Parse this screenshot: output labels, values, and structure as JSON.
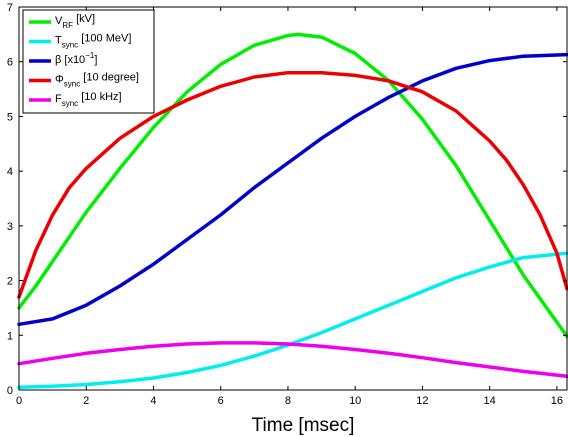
{
  "chart_data": {
    "type": "line",
    "xlabel": "Time [msec]",
    "ylabel": "",
    "xlim": [
      0,
      16.3
    ],
    "ylim": [
      0,
      7
    ],
    "xticks": [
      0,
      2,
      4,
      6,
      8,
      10,
      12,
      14,
      16
    ],
    "yticks": [
      0,
      1,
      2,
      3,
      4,
      5,
      6,
      7
    ],
    "grid": false,
    "legend_position": "top-left",
    "series": [
      {
        "key": "vrf",
        "name": "V_RF [kV]",
        "label_main": "V",
        "label_sub": "RF",
        "label_sup": "",
        "label_rest": " [kV]",
        "color": "#00ee00",
        "x": [
          0,
          0.5,
          1,
          1.5,
          2,
          3,
          4,
          5,
          6,
          7,
          8,
          8.3,
          9,
          10,
          11,
          12,
          13,
          14,
          15,
          16.3
        ],
        "y": [
          1.5,
          1.9,
          2.35,
          2.8,
          3.25,
          4.05,
          4.8,
          5.45,
          5.95,
          6.3,
          6.48,
          6.5,
          6.45,
          6.15,
          5.65,
          4.95,
          4.1,
          3.1,
          2.1,
          0.98
        ]
      },
      {
        "key": "tsync",
        "name": "T_sync [100 MeV]",
        "label_main": "T",
        "label_sub": "sync",
        "label_sup": "",
        "label_rest": " [100 MeV]",
        "color": "#00eeee",
        "x": [
          0,
          1,
          2,
          3,
          4,
          5,
          6,
          7,
          8,
          9,
          10,
          11,
          12,
          13,
          14,
          15,
          16.3
        ],
        "y": [
          0.05,
          0.07,
          0.1,
          0.15,
          0.22,
          0.32,
          0.45,
          0.62,
          0.82,
          1.05,
          1.3,
          1.55,
          1.8,
          2.05,
          2.25,
          2.42,
          2.5
        ]
      },
      {
        "key": "beta",
        "name": "β [x10^-1]",
        "label_main": "β [x10",
        "label_sub": "",
        "label_sup": "−1",
        "label_rest": "]",
        "color": "#0000cc",
        "x": [
          0,
          1,
          2,
          3,
          4,
          5,
          6,
          7,
          8,
          9,
          10,
          11,
          12,
          13,
          14,
          15,
          16.3
        ],
        "y": [
          1.2,
          1.3,
          1.55,
          1.9,
          2.3,
          2.75,
          3.2,
          3.7,
          4.15,
          4.6,
          5.0,
          5.35,
          5.65,
          5.88,
          6.02,
          6.1,
          6.13
        ]
      },
      {
        "key": "phisync",
        "name": "Φ_sync [10 degree]",
        "label_main": "Φ",
        "label_sub": "sync",
        "label_sup": "",
        "label_rest": " [10 degree]",
        "color": "#ee0000",
        "x": [
          0,
          0.5,
          1,
          1.5,
          2,
          3,
          4,
          5,
          6,
          7,
          8,
          9,
          10,
          11,
          12,
          13,
          14,
          14.5,
          15,
          15.5,
          16,
          16.3
        ],
        "y": [
          1.7,
          2.55,
          3.2,
          3.7,
          4.05,
          4.6,
          5.0,
          5.3,
          5.55,
          5.72,
          5.8,
          5.8,
          5.75,
          5.65,
          5.45,
          5.1,
          4.55,
          4.2,
          3.75,
          3.2,
          2.5,
          1.85
        ]
      },
      {
        "key": "fsync",
        "name": "F_sync [10 kHz]",
        "label_main": "F",
        "label_sub": "sync",
        "label_sup": "",
        "label_rest": " [10 kHz]",
        "color": "#ee00ee",
        "x": [
          0,
          1,
          2,
          3,
          4,
          5,
          6,
          7,
          8,
          9,
          10,
          11,
          12,
          13,
          14,
          15,
          16.3
        ],
        "y": [
          0.48,
          0.58,
          0.67,
          0.74,
          0.8,
          0.84,
          0.86,
          0.86,
          0.84,
          0.8,
          0.74,
          0.67,
          0.59,
          0.5,
          0.42,
          0.34,
          0.25
        ]
      }
    ]
  }
}
